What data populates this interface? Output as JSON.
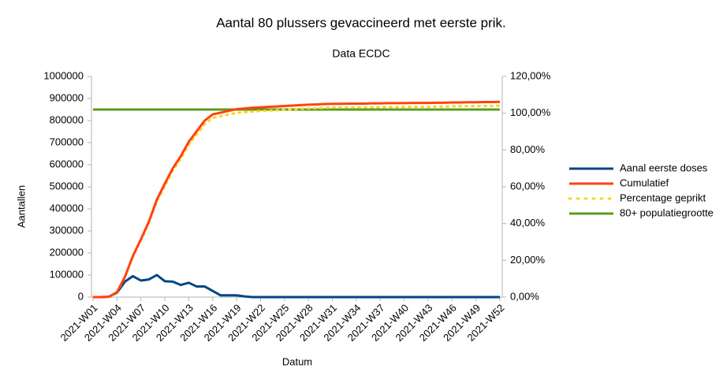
{
  "chart_data": {
    "type": "line",
    "title": "Aantal 80 plussers gevaccineerd met eerste prik.",
    "subtitle": "Data ECDC",
    "y_label": "Aantallen",
    "x_label": "Datum",
    "categories": [
      "2021-W01",
      null,
      null,
      "2021-W04",
      null,
      null,
      "2021-W07",
      null,
      null,
      "2021-W10",
      null,
      null,
      "2021-W13",
      null,
      null,
      "2021-W16",
      null,
      null,
      "2021-W19",
      null,
      null,
      "2021-W22",
      null,
      null,
      "2021-W25",
      null,
      null,
      "2021-W28",
      null,
      null,
      "2021-W31",
      null,
      null,
      "2021-W34",
      null,
      null,
      "2021-W37",
      null,
      null,
      "2021-W40",
      null,
      null,
      "2021-W43",
      null,
      null,
      "2021-W46",
      null,
      null,
      "2021-W49",
      null,
      null,
      "2021-W52"
    ],
    "series": [
      {
        "name": "Aanal eerste doses",
        "color": "#004586",
        "values": [
          0,
          0,
          2000,
          20000,
          70000,
          95000,
          75000,
          80000,
          100000,
          72000,
          70000,
          55000,
          65000,
          48000,
          48000,
          28000,
          8000,
          8000,
          8000,
          3000,
          0,
          0,
          0,
          0,
          0,
          0,
          0,
          0,
          0,
          0,
          0,
          0,
          0,
          0,
          0,
          0,
          0,
          0,
          0,
          0,
          0,
          0,
          0,
          0,
          0,
          0,
          0,
          0,
          0,
          0,
          0,
          0
        ]
      },
      {
        "name": "Cumulatief",
        "color": "#ff420e",
        "values": [
          0,
          0,
          2000,
          22000,
          92000,
          187000,
          262000,
          342000,
          442000,
          514000,
          584000,
          639000,
          704000,
          752000,
          800000,
          828000,
          836000,
          844000,
          852000,
          855000,
          858000,
          860000,
          862000,
          864000,
          866000,
          868000,
          870000,
          872000,
          873000,
          875000,
          876000,
          876000,
          877000,
          877000,
          877000,
          878000,
          878000,
          879000,
          879000,
          879000,
          880000,
          880000,
          880000,
          881000,
          881000,
          882000,
          882000,
          883000,
          883000,
          884000,
          884000,
          885000
        ]
      },
      {
        "name": "Percentage geprikt",
        "color": "#ffd320",
        "axis": "y2",
        "dotted": true,
        "values": [
          0,
          0,
          0.24,
          2.59,
          10.8,
          22,
          30.8,
          40.2,
          52,
          60.5,
          68.7,
          75.2,
          82.8,
          88.5,
          94.1,
          97.4,
          98.4,
          99.3,
          100.2,
          100.6,
          100.9,
          101.2,
          101.4,
          101.6,
          101.9,
          102.1,
          102.4,
          102.6,
          102.7,
          102.9,
          103.1,
          103.1,
          103.2,
          103.2,
          103.2,
          103.3,
          103.3,
          103.4,
          103.4,
          103.4,
          103.5,
          103.5,
          103.5,
          103.6,
          103.6,
          103.8,
          103.8,
          103.9,
          103.9,
          104,
          104,
          104.1
        ]
      },
      {
        "name": "80+ populatiegrootte",
        "color": "#579d1c",
        "values": [
          850000,
          850000,
          850000,
          850000,
          850000,
          850000,
          850000,
          850000,
          850000,
          850000,
          850000,
          850000,
          850000,
          850000,
          850000,
          850000,
          850000,
          850000,
          850000,
          850000,
          850000,
          850000,
          850000,
          850000,
          850000,
          850000,
          850000,
          850000,
          850000,
          850000,
          850000,
          850000,
          850000,
          850000,
          850000,
          850000,
          850000,
          850000,
          850000,
          850000,
          850000,
          850000,
          850000,
          850000,
          850000,
          850000,
          850000,
          850000,
          850000,
          850000,
          850000,
          850000
        ]
      }
    ],
    "ylim": [
      0,
      1000000
    ],
    "yticks": [
      0,
      100000,
      200000,
      300000,
      400000,
      500000,
      600000,
      700000,
      800000,
      900000,
      1000000
    ],
    "y2lim": [
      0,
      120
    ],
    "y2ticks": [
      {
        "value": 0,
        "label": "0,00%"
      },
      {
        "value": 20,
        "label": "20,00%"
      },
      {
        "value": 40,
        "label": "40,00%"
      },
      {
        "value": 60,
        "label": "60,00%"
      },
      {
        "value": 80,
        "label": "80,00%"
      },
      {
        "value": 100,
        "label": "100,00%"
      },
      {
        "value": 120,
        "label": "120,00%"
      }
    ],
    "legend": "right"
  }
}
